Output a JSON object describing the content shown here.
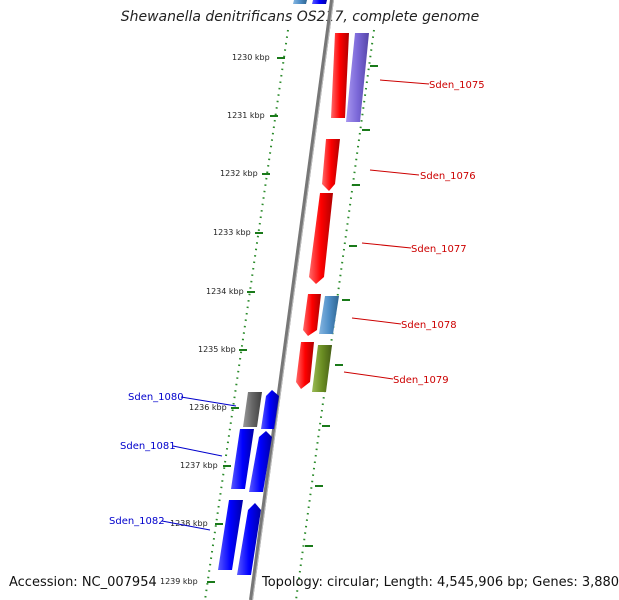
{
  "title": "Shewanella denitrificans OS217, complete genome",
  "footer": {
    "accession": "Accession: NC_007954",
    "summary": "Topology: circular; Length: 4,545,906 bp; Genes: 3,880"
  },
  "ticks": [
    "1230 kbp",
    "1231 kbp",
    "1232 kbp",
    "1233 kbp",
    "1234 kbp",
    "1235 kbp",
    "1236 kbp",
    "1237 kbp",
    "1238 kbp",
    "1239 kbp"
  ],
  "genes_right": [
    {
      "name": "Sden_1075",
      "color": "#cc0000"
    },
    {
      "name": "Sden_1076",
      "color": "#cc0000"
    },
    {
      "name": "Sden_1077",
      "color": "#cc0000"
    },
    {
      "name": "Sden_1078",
      "color": "#cc0000"
    },
    {
      "name": "Sden_1079",
      "color": "#cc0000"
    }
  ],
  "genes_left": [
    {
      "name": "Sden_1080",
      "color": "#0000cc"
    },
    {
      "name": "Sden_1081",
      "color": "#0000cc"
    },
    {
      "name": "Sden_1082",
      "color": "#0000cc"
    }
  ],
  "colors": {
    "red_gene": "#ff0000",
    "blue_gene": "#0000ff",
    "purple_gene": "#7b68d8",
    "steelblue_gene": "#4f8fc8",
    "olive_gene": "#6b8e23",
    "gray_gene": "#666666",
    "backbone": "#888888",
    "dotted_track": "#2a8a2a"
  }
}
